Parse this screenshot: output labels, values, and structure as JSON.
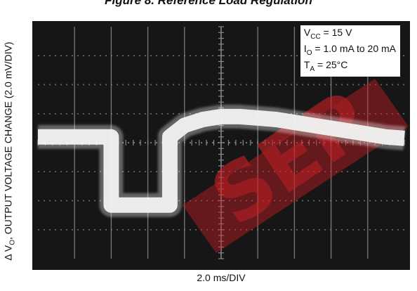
{
  "title": "Figure 8. Reference Load Regulation",
  "ylabel": {
    "prefix": "Δ V",
    "sub": "O",
    "rest": ", OUTPUT VOLTAGE CHANGE (2.0 mV/DIV)"
  },
  "xlabel": "2.0 ms/DIV",
  "conditions": [
    {
      "main": "V",
      "sub": "CC",
      "rest": " = 15 V"
    },
    {
      "main": "I",
      "sub": "O",
      "rest": " = 1.0 mA to 20 mA"
    },
    {
      "main": "T",
      "sub": "A",
      "rest": " = 25°C"
    }
  ],
  "watermark": "SEP",
  "colors": {
    "screen": "#161616",
    "grid": "#8a8a8a",
    "trace": "#f2f2f2",
    "watermark": "#cc1f26"
  },
  "chart_data": {
    "type": "line",
    "xlabel": "2.0 ms/DIV",
    "ylabel": "Δ VO, OUTPUT VOLTAGE CHANGE (2.0 mV/DIV)",
    "x_unit": "ms",
    "y_unit": "mV",
    "xlim": [
      0,
      20
    ],
    "ylim": [
      -8,
      8
    ],
    "x_divisions": 10,
    "y_divisions": 8,
    "grid": true,
    "series": [
      {
        "x": [
          0,
          4.0,
          4.0,
          7.2,
          7.2,
          8,
          9,
          10,
          11,
          12,
          13,
          14,
          15,
          16,
          17,
          18,
          19,
          20
        ],
        "y": [
          0.4,
          0.4,
          -4.3,
          -4.3,
          0.4,
          1.2,
          1.6,
          1.8,
          1.8,
          1.7,
          1.6,
          1.4,
          1.2,
          1.0,
          0.8,
          0.6,
          0.4,
          0.3
        ]
      }
    ]
  }
}
